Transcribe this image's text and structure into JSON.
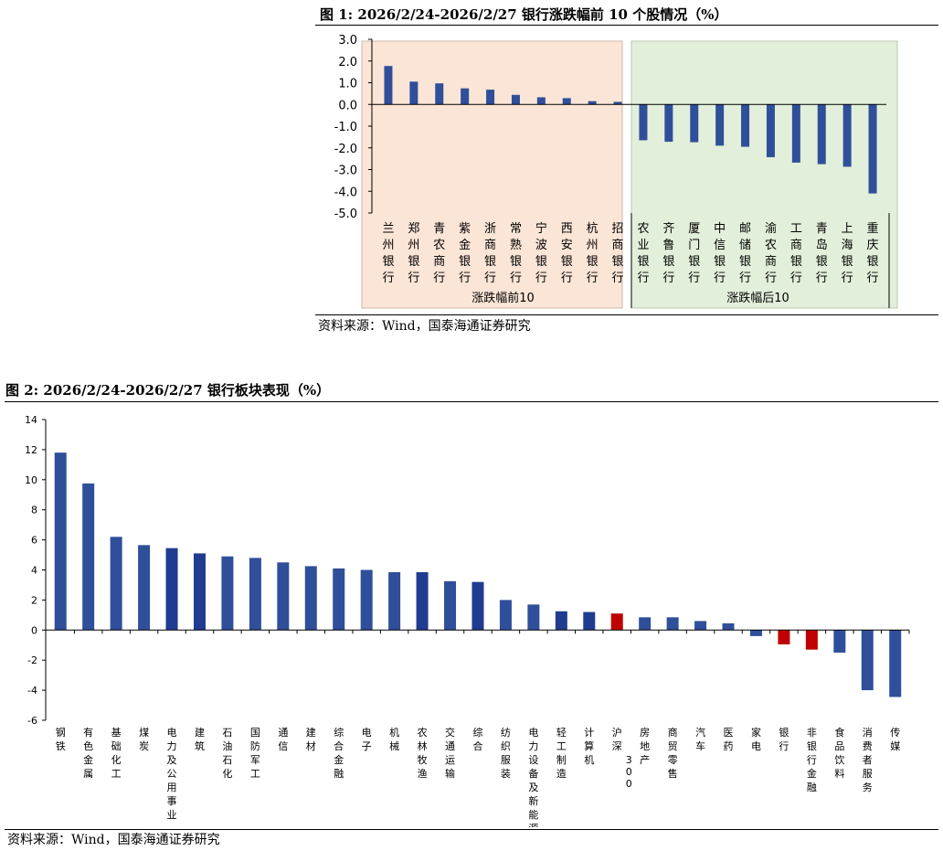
{
  "figure1": {
    "title": "图 1:  2026/2/24-2026/2/27 银行涨跌幅前 10 个股情况（%）",
    "source": "资料来源：Wind，国泰海通证券研究"
  },
  "figure2": {
    "title": "图 2:  2026/2/24-2026/2/27 银行板块表现（%）",
    "source": "资料来源：Wind，国泰海通证券研究"
  },
  "colors": {
    "bar": "#2F4F9A",
    "bar_dark": "#1F3C91",
    "bar_highlight": "#C00000",
    "top_group_bg": "#FBE5D6",
    "bottom_group_bg": "#E2EFDA",
    "grid_axis": "#000000"
  },
  "chart_data": [
    {
      "type": "bar",
      "categories": [
        "兰州银行",
        "郑州银行",
        "青农商行",
        "紫金银行",
        "浙商银行",
        "常熟银行",
        "宁波银行",
        "西安银行",
        "杭州银行",
        "招商银行",
        "农业银行",
        "齐鲁银行",
        "厦门银行",
        "中信银行",
        "邮储银行",
        "渝农商行",
        "工商银行",
        "青岛银行",
        "上海银行",
        "重庆银行"
      ],
      "values": [
        1.77,
        1.05,
        0.97,
        0.74,
        0.68,
        0.44,
        0.33,
        0.29,
        0.15,
        0.12,
        -1.65,
        -1.72,
        -1.74,
        -1.9,
        -1.95,
        -2.43,
        -2.68,
        -2.75,
        -2.87,
        -4.1
      ],
      "groups": [
        {
          "label": "涨跌幅前10",
          "start": 0,
          "end": 9
        },
        {
          "label": "涨跌幅后10",
          "start": 10,
          "end": 19
        }
      ],
      "ylim": [
        -5.0,
        3.0
      ],
      "yticks": [
        "3.0",
        "2.0",
        "1.0",
        "0.0",
        "-1.0",
        "-2.0",
        "-3.0",
        "-4.0",
        "-5.0"
      ],
      "title": "",
      "xlabel": "",
      "ylabel": ""
    },
    {
      "type": "bar",
      "categories": [
        "钢铁",
        "有色金属",
        "基础化工",
        "煤炭",
        "电力及公用事业",
        "建筑",
        "石油石化",
        "国防军工",
        "通信",
        "建材",
        "综合金融",
        "电子",
        "机械",
        "农林牧渔",
        "交通运输",
        "综合",
        "纺织服装",
        "电力设备及新能源",
        "轻工制造",
        "计算机",
        "沪深300",
        "房地产",
        "商贸零售",
        "汽车",
        "医药",
        "家电",
        "银行",
        "非银行金融",
        "食品饮料",
        "消费者服务",
        "传媒"
      ],
      "values": [
        11.8,
        9.75,
        6.2,
        5.65,
        5.45,
        5.1,
        4.9,
        4.8,
        4.5,
        4.25,
        4.1,
        4.0,
        3.85,
        3.85,
        3.25,
        3.2,
        2.0,
        1.7,
        1.25,
        1.2,
        1.1,
        0.85,
        0.85,
        0.6,
        0.45,
        -0.4,
        -0.95,
        -1.3,
        -1.5,
        -4.0,
        -4.45
      ],
      "highlight": [
        "沪深300",
        "银行",
        "非银行金融"
      ],
      "dark": [
        "电力及公用事业",
        "建筑",
        "农林牧渔",
        "综合",
        "轻工制造",
        "计算机"
      ],
      "ylim": [
        -6,
        14
      ],
      "yticks": [
        "14",
        "12",
        "10",
        "8",
        "6",
        "4",
        "2",
        "0",
        "-2",
        "-4",
        "-6"
      ],
      "title": "",
      "xlabel": "",
      "ylabel": ""
    }
  ]
}
